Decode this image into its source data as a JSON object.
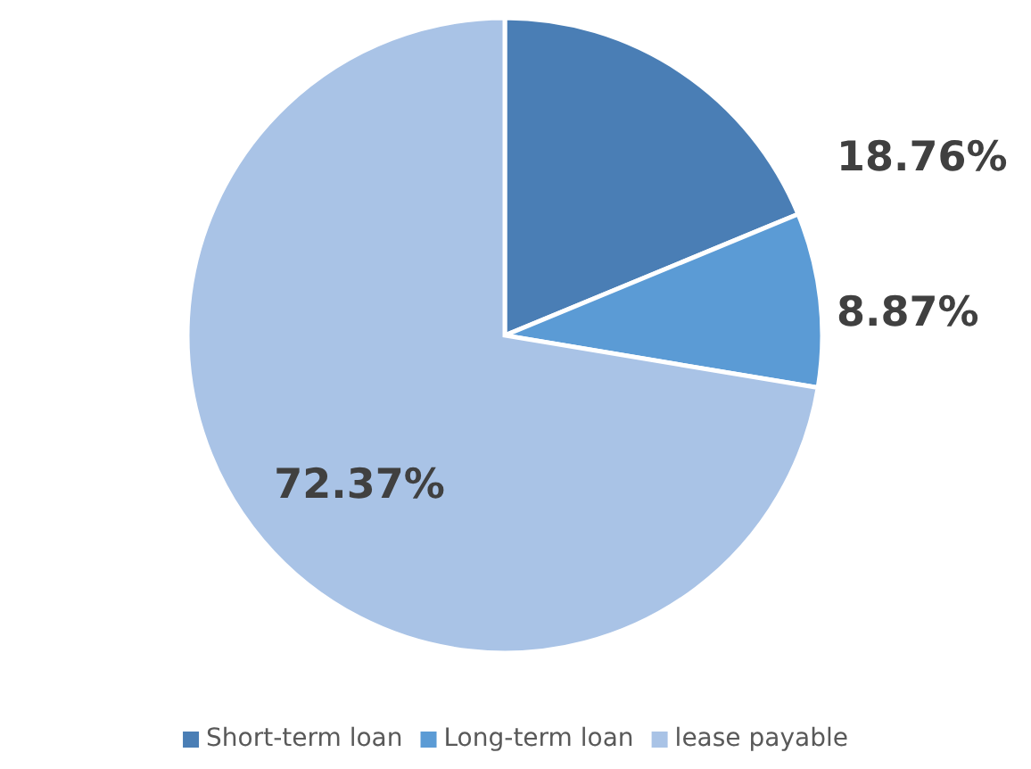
{
  "chart_data": {
    "type": "pie",
    "categories": [
      "Short-term loan",
      "Long-term loan",
      "lease payable"
    ],
    "values": [
      18.76,
      8.87,
      72.37
    ],
    "colors": [
      "#4a7eb5",
      "#5b9bd5",
      "#a9c3e6"
    ],
    "value_labels": [
      "18.76%",
      "8.87%",
      "72.37%"
    ],
    "legend": "bottom"
  }
}
